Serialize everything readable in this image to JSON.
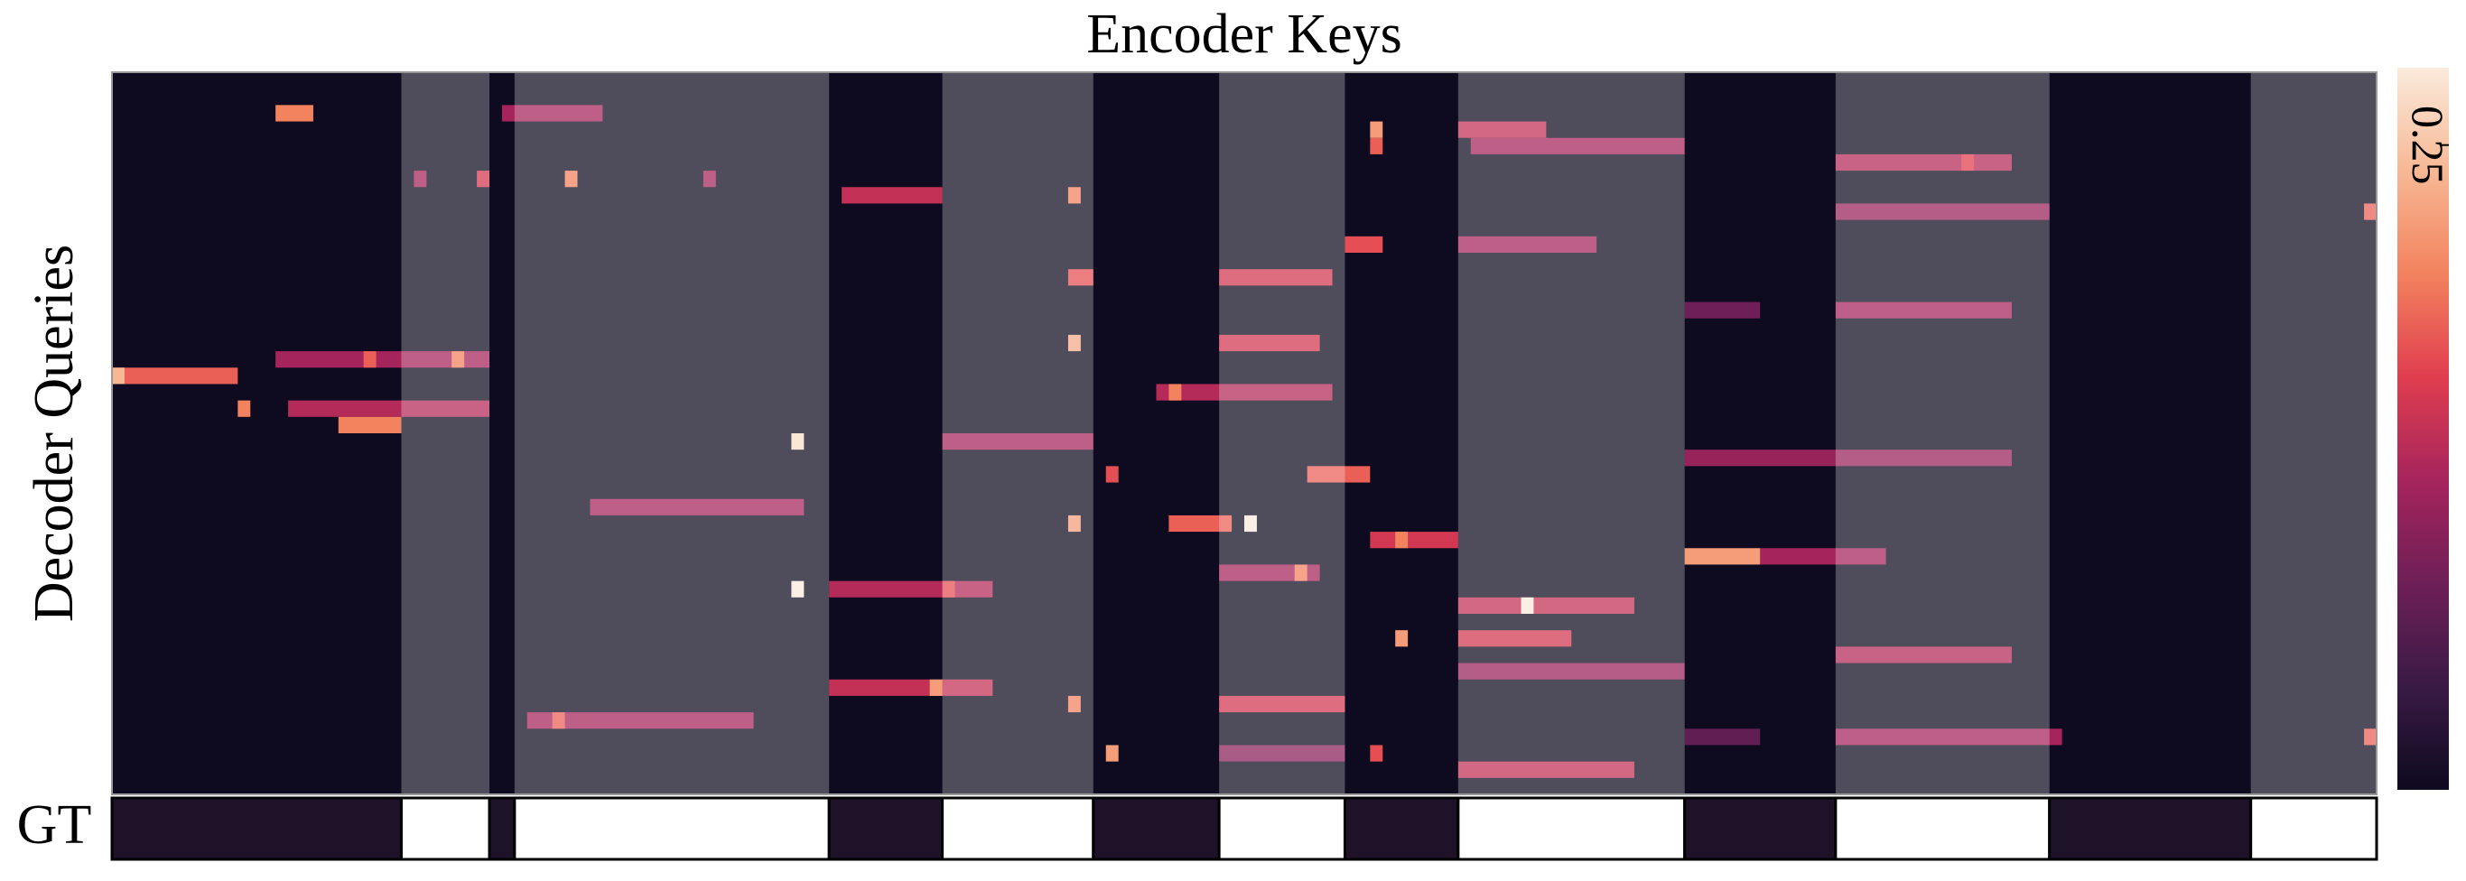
{
  "chart_data": {
    "type": "heatmap",
    "title": "Encoder Keys",
    "y_label": "Decoder Queries",
    "gt_label": "GT",
    "xlim": [
      0,
      180
    ],
    "ylim": [
      0,
      44
    ],
    "clim": [
      0,
      0.28
    ],
    "cticks": [
      0.25
    ],
    "colormap": [
      "#0e0a1f",
      "#3a1a45",
      "#6e1f57",
      "#a6245c",
      "#e03e4f",
      "#f3825e",
      "#f7b894",
      "#fbeadc"
    ],
    "segments": [
      [
        0,
        23,
        0
      ],
      [
        23,
        30,
        1
      ],
      [
        30,
        32,
        0
      ],
      [
        32,
        57,
        1
      ],
      [
        57,
        66,
        0
      ],
      [
        66,
        78,
        1
      ],
      [
        78,
        88,
        0
      ],
      [
        88,
        98,
        1
      ],
      [
        98,
        107,
        0
      ],
      [
        107,
        125,
        1
      ],
      [
        125,
        137,
        0
      ],
      [
        137,
        154,
        1
      ],
      [
        154,
        170,
        0
      ],
      [
        170,
        180,
        1
      ]
    ],
    "cells": [
      [
        2,
        31,
        39,
        0.12
      ],
      [
        2,
        13,
        16,
        0.2
      ],
      [
        3,
        107,
        114,
        0.14
      ],
      [
        3,
        100,
        101,
        0.22
      ],
      [
        4,
        108,
        125,
        0.12
      ],
      [
        4,
        100,
        101,
        0.18
      ],
      [
        5,
        137,
        151,
        0.13
      ],
      [
        5,
        147,
        148,
        0.16
      ],
      [
        6,
        24,
        25,
        0.12
      ],
      [
        6,
        29,
        30,
        0.15
      ],
      [
        6,
        36,
        37,
        0.2
      ],
      [
        6,
        47,
        48,
        0.12
      ],
      [
        7,
        58,
        66,
        0.14
      ],
      [
        7,
        76,
        77,
        0.2
      ],
      [
        8,
        137,
        154,
        0.11
      ],
      [
        8,
        179,
        180,
        0.18
      ],
      [
        10,
        98,
        101,
        0.17
      ],
      [
        10,
        107,
        118,
        0.12
      ],
      [
        12,
        88,
        97,
        0.15
      ],
      [
        12,
        76,
        78,
        0.17
      ],
      [
        14,
        125,
        131,
        0.08
      ],
      [
        14,
        137,
        151,
        0.12
      ],
      [
        16,
        88,
        96,
        0.15
      ],
      [
        16,
        76,
        77,
        0.23
      ],
      [
        17,
        13,
        30,
        0.12
      ],
      [
        17,
        20,
        21,
        0.18
      ],
      [
        17,
        27,
        28,
        0.2
      ],
      [
        18,
        0,
        10,
        0.18
      ],
      [
        18,
        0,
        1,
        0.24
      ],
      [
        19,
        83,
        97,
        0.13
      ],
      [
        19,
        84,
        85,
        0.2
      ],
      [
        20,
        14,
        30,
        0.13
      ],
      [
        20,
        10,
        11,
        0.2
      ],
      [
        21,
        18,
        23,
        0.2
      ],
      [
        22,
        66,
        78,
        0.12
      ],
      [
        22,
        54,
        55,
        0.27
      ],
      [
        23,
        125,
        151,
        0.11
      ],
      [
        24,
        95,
        100,
        0.18
      ],
      [
        24,
        79,
        80,
        0.17
      ],
      [
        26,
        38,
        55,
        0.12
      ],
      [
        27,
        84,
        89,
        0.18
      ],
      [
        27,
        76,
        77,
        0.22
      ],
      [
        27,
        90,
        91,
        0.3
      ],
      [
        28,
        100,
        107,
        0.15
      ],
      [
        28,
        102,
        103,
        0.2
      ],
      [
        29,
        131,
        141,
        0.12
      ],
      [
        29,
        125,
        131,
        0.22
      ],
      [
        30,
        88,
        96,
        0.12
      ],
      [
        30,
        94,
        95,
        0.2
      ],
      [
        31,
        57,
        70,
        0.13
      ],
      [
        31,
        66,
        67,
        0.17
      ],
      [
        31,
        54,
        55,
        0.28
      ],
      [
        32,
        107,
        121,
        0.14
      ],
      [
        32,
        112,
        113,
        0.3
      ],
      [
        34,
        107,
        116,
        0.15
      ],
      [
        34,
        102,
        103,
        0.22
      ],
      [
        35,
        137,
        151,
        0.13
      ],
      [
        36,
        107,
        125,
        0.11
      ],
      [
        37,
        57,
        70,
        0.14
      ],
      [
        37,
        65,
        66,
        0.22
      ],
      [
        38,
        88,
        98,
        0.15
      ],
      [
        38,
        76,
        77,
        0.2
      ],
      [
        39,
        33,
        51,
        0.12
      ],
      [
        39,
        35,
        36,
        0.18
      ],
      [
        40,
        125,
        131,
        0.07
      ],
      [
        40,
        137,
        155,
        0.12
      ],
      [
        40,
        179,
        180,
        0.18
      ],
      [
        41,
        88,
        98,
        0.1
      ],
      [
        41,
        79,
        80,
        0.22
      ],
      [
        41,
        100,
        101,
        0.17
      ],
      [
        42,
        107,
        121,
        0.14
      ]
    ]
  }
}
